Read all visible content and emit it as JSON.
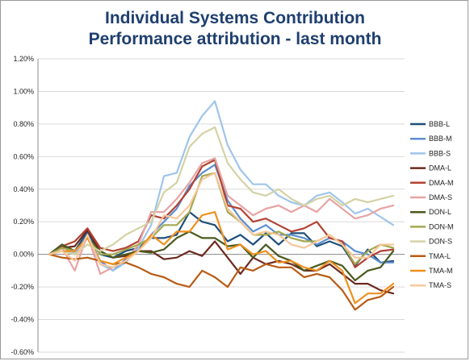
{
  "chart_data": {
    "type": "line",
    "title": "Individual Systems Contribution",
    "subtitle": "Performance attribution - last month",
    "xlabel": "",
    "ylabel": "",
    "ylim": [
      -0.6,
      1.2
    ],
    "yticks": [
      {
        "value": 1.2,
        "label": "1.20%"
      },
      {
        "value": 1.0,
        "label": "1.00%"
      },
      {
        "value": 0.8,
        "label": "0.80%"
      },
      {
        "value": 0.6,
        "label": "0.60%"
      },
      {
        "value": 0.4,
        "label": "0.40%"
      },
      {
        "value": 0.2,
        "label": "0.20%"
      },
      {
        "value": 0.0,
        "label": "0.00%"
      },
      {
        "value": -0.2,
        "label": "-0.20%"
      },
      {
        "value": -0.4,
        "label": "-0.40%"
      },
      {
        "value": -0.6,
        "label": "-0.60%"
      }
    ],
    "grid": true,
    "legend_position": "right",
    "x": [
      1,
      2,
      3,
      4,
      5,
      6,
      7,
      8,
      9,
      10,
      11,
      12,
      13,
      14,
      15,
      16,
      17,
      18,
      19,
      20,
      21,
      22,
      23,
      24,
      25,
      26,
      27,
      28
    ],
    "series": [
      {
        "name": "BBB-L",
        "color": "#1f4e79",
        "values": [
          0,
          0.06,
          0.02,
          0.14,
          0,
          -0.02,
          0.02,
          0.04,
          0.1,
          0.1,
          0.12,
          0.26,
          0.2,
          0.18,
          0.08,
          0.12,
          0.06,
          0.13,
          0.06,
          0.13,
          0.13,
          0.05,
          0.08,
          0.05,
          -0.07,
          0.03,
          -0.05,
          -0.04
        ]
      },
      {
        "name": "BBB-M",
        "color": "#5b8fd0",
        "values": [
          0,
          0.05,
          0,
          0.12,
          -0.04,
          -0.1,
          -0.03,
          0.02,
          0.12,
          0.2,
          0.28,
          0.42,
          0.5,
          0.55,
          0.33,
          0.22,
          0.14,
          0.18,
          0.12,
          0.12,
          0.1,
          0.06,
          0.1,
          0.08,
          0.02,
          0,
          -0.05,
          -0.05
        ]
      },
      {
        "name": "BBB-S",
        "color": "#9fc5ea",
        "values": [
          0,
          0.02,
          0.01,
          0.1,
          -0.06,
          -0.1,
          -0.05,
          0.04,
          0.18,
          0.48,
          0.5,
          0.72,
          0.85,
          0.94,
          0.67,
          0.52,
          0.43,
          0.43,
          0.36,
          0.32,
          0.3,
          0.36,
          0.38,
          0.32,
          0.25,
          0.28,
          0.23,
          0.18
        ]
      },
      {
        "name": "DMA-L",
        "color": "#6b2a1f",
        "values": [
          0,
          0.04,
          0.05,
          0.15,
          0.02,
          -0.02,
          -0.01,
          0.02,
          0.02,
          -0.03,
          -0.02,
          0.02,
          -0.01,
          0.08,
          -0.02,
          -0.12,
          -0.02,
          -0.06,
          -0.04,
          -0.06,
          -0.1,
          -0.1,
          -0.06,
          -0.12,
          -0.18,
          -0.18,
          -0.22,
          -0.24
        ]
      },
      {
        "name": "DMA-M",
        "color": "#b34233",
        "values": [
          0,
          0.05,
          0.08,
          0.16,
          0.04,
          0.02,
          0.04,
          0.08,
          0.24,
          0.22,
          0.3,
          0.4,
          0.54,
          0.58,
          0.3,
          0.28,
          0.2,
          0.22,
          0.18,
          0.14,
          0.16,
          0.2,
          0.1,
          0.08,
          -0.08,
          -0.02,
          0.02,
          0.03
        ]
      },
      {
        "name": "DMA-S",
        "color": "#e6a4a4",
        "values": [
          0,
          0.04,
          -0.1,
          0.12,
          -0.12,
          -0.08,
          -0.04,
          0.06,
          0.26,
          0.26,
          0.34,
          0.44,
          0.56,
          0.59,
          0.36,
          0.3,
          0.24,
          0.28,
          0.3,
          0.26,
          0.3,
          0.26,
          0.34,
          0.28,
          0.22,
          0.24,
          0.28,
          0.3
        ]
      },
      {
        "name": "DON-L",
        "color": "#4a5a1e",
        "values": [
          0,
          0.06,
          0.02,
          0.1,
          0.02,
          -0.02,
          0,
          0.02,
          0.01,
          0.03,
          0.1,
          0.14,
          0.1,
          0.1,
          0.05,
          0.06,
          -0.02,
          0.06,
          -0.01,
          -0.04,
          -0.1,
          -0.07,
          -0.04,
          -0.07,
          -0.16,
          -0.1,
          -0.08,
          0.02
        ]
      },
      {
        "name": "DON-M",
        "color": "#a4a850",
        "values": [
          0,
          0.04,
          0.02,
          0.1,
          0,
          0,
          0.03,
          0.06,
          0.1,
          0.18,
          0.18,
          0.26,
          0.48,
          0.5,
          0.26,
          0.2,
          0.12,
          0.12,
          0.14,
          0.1,
          0.08,
          0.08,
          0.12,
          0.06,
          -0.06,
          0.02,
          0.06,
          0.04
        ]
      },
      {
        "name": "DON-S",
        "color": "#d4d2a6",
        "values": [
          0,
          0.02,
          0,
          0.06,
          0.02,
          0.06,
          0.12,
          0.16,
          0.2,
          0.38,
          0.44,
          0.66,
          0.74,
          0.78,
          0.56,
          0.46,
          0.38,
          0.36,
          0.4,
          0.34,
          0.3,
          0.34,
          0.36,
          0.3,
          0.34,
          0.32,
          0.34,
          0.36
        ]
      },
      {
        "name": "TMA-L",
        "color": "#b85c15",
        "values": [
          0,
          -0.02,
          -0.03,
          -0.02,
          -0.04,
          -0.06,
          -0.05,
          -0.08,
          -0.12,
          -0.14,
          -0.18,
          -0.2,
          -0.1,
          -0.14,
          -0.2,
          -0.08,
          -0.1,
          -0.06,
          -0.08,
          -0.08,
          -0.14,
          -0.12,
          -0.14,
          -0.22,
          -0.34,
          -0.28,
          -0.26,
          -0.2
        ]
      },
      {
        "name": "TMA-M",
        "color": "#f0901e",
        "values": [
          0,
          0.02,
          0.02,
          0.1,
          -0.04,
          -0.06,
          -0.02,
          0.02,
          0.12,
          0.06,
          0.14,
          0.14,
          0.24,
          0.26,
          0.03,
          0.06,
          0.0,
          0.02,
          -0.05,
          -0.04,
          -0.08,
          -0.1,
          -0.04,
          -0.1,
          -0.3,
          -0.24,
          -0.24,
          -0.18
        ]
      },
      {
        "name": "TMA-S",
        "color": "#f7c89a",
        "values": [
          0,
          0.02,
          -0.04,
          0.12,
          -0.06,
          -0.08,
          -0.04,
          0.02,
          0.1,
          0.24,
          0.22,
          0.3,
          0.46,
          0.5,
          0.28,
          0.2,
          0.12,
          0.14,
          0.12,
          0.06,
          0.04,
          0.08,
          0.12,
          0.06,
          -0.02,
          -0.02,
          0.06,
          0.06
        ]
      }
    ]
  }
}
